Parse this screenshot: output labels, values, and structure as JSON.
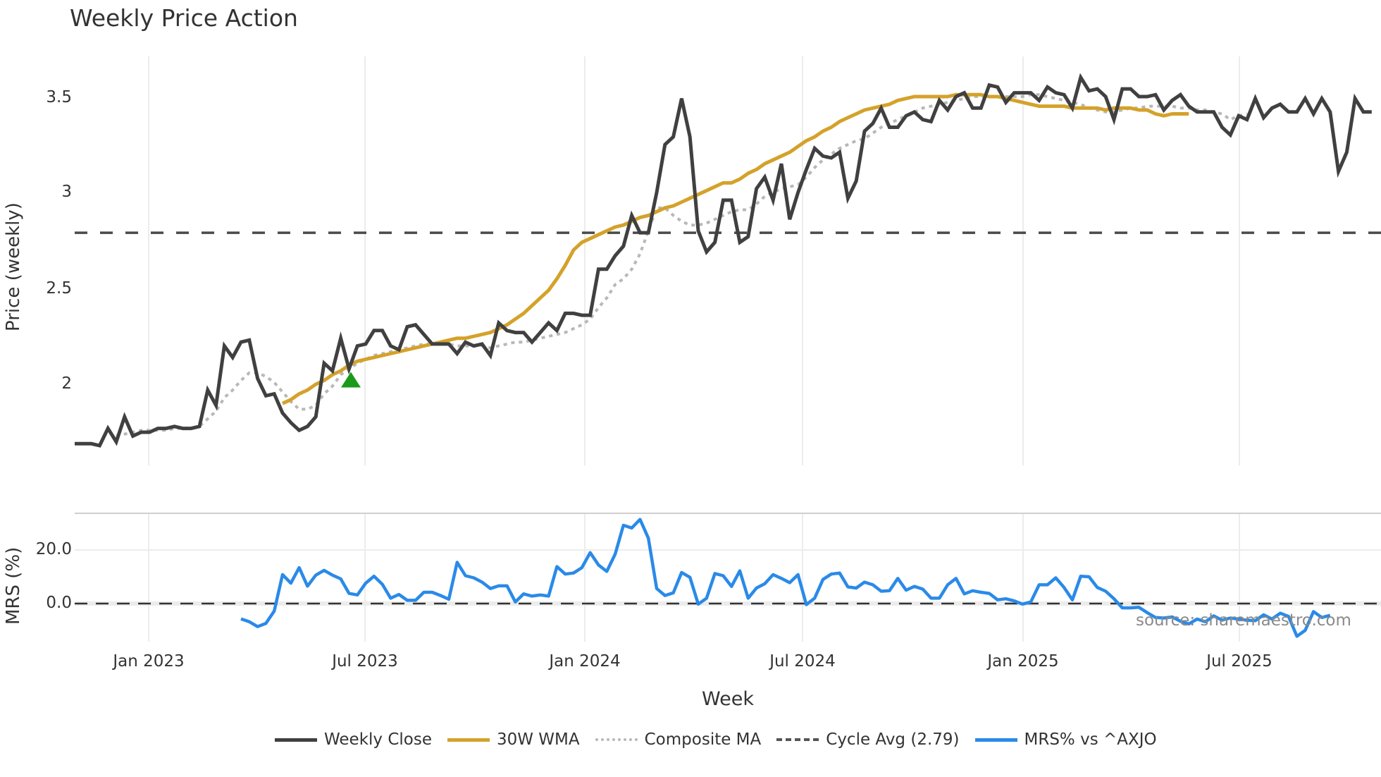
{
  "title": "Weekly Price Action",
  "price_panel": {
    "ylabel": "Price (weekly)",
    "yticks": [
      "3.5",
      "3",
      "2.5",
      "2"
    ]
  },
  "mrs_panel": {
    "ylabel": "MRS (%)",
    "yticks": [
      "20.0",
      "0.0"
    ]
  },
  "xaxis": {
    "title": "Week",
    "ticks": [
      "Jan 2023",
      "Jul 2023",
      "Jan 2024",
      "Jul 2024",
      "Jan 2025",
      "Jul 2025"
    ]
  },
  "source": "source: sharemaestro.com",
  "legend": [
    {
      "label": "Weekly Close",
      "color": "#404040",
      "style": "solid"
    },
    {
      "label": "30W WMA",
      "color": "#d4a22a",
      "style": "solid"
    },
    {
      "label": "Composite MA",
      "color": "#b8b8b8",
      "style": "dotted"
    },
    {
      "label": "Cycle Avg (2.79)",
      "color": "#555555",
      "style": "dashed"
    },
    {
      "label": "MRS% vs ^AXJO",
      "color": "#2a8ae8",
      "style": "solid"
    }
  ],
  "colors": {
    "close": "#404040",
    "wma": "#d4a22a",
    "composite": "#b8b8b8",
    "cycle": "#4a4a4a",
    "mrs": "#2a8ae8",
    "marker": "#1a9a1a",
    "grid": "#ececec"
  },
  "chart_data": [
    {
      "type": "line",
      "title": "Weekly Price Action",
      "xlabel": "Week",
      "ylabel": "Price (weekly)",
      "ylim": [
        1.68,
        3.72
      ],
      "x_tick_labels": [
        "Jan 2023",
        "Jul 2023",
        "Jan 2024",
        "Jul 2024",
        "Jan 2025",
        "Jul 2025"
      ],
      "grid": "vertical",
      "legend_position": "bottom",
      "cycle_avg": 2.79,
      "buy_marker": {
        "week_index": 26,
        "value": 2.02,
        "shape": "triangle-up",
        "color": "green"
      },
      "series": [
        {
          "name": "Weekly Close",
          "values": [
            1.69,
            1.69,
            1.69,
            1.68,
            1.77,
            1.7,
            1.83,
            1.73,
            1.75,
            1.75,
            1.77,
            1.77,
            1.78,
            1.77,
            1.77,
            1.78,
            1.97,
            1.89,
            2.2,
            2.14,
            2.22,
            2.23,
            2.03,
            1.94,
            1.95,
            1.85,
            1.8,
            1.76,
            1.78,
            1.83,
            2.11,
            2.07,
            2.24,
            2.08,
            2.2,
            2.21,
            2.28,
            2.28,
            2.2,
            2.18,
            2.3,
            2.31,
            2.26,
            2.21,
            2.21,
            2.21,
            2.16,
            2.22,
            2.2,
            2.21,
            2.15,
            2.32,
            2.28,
            2.27,
            2.27,
            2.22,
            2.27,
            2.32,
            2.28,
            2.37,
            2.37,
            2.36,
            2.36,
            2.6,
            2.6,
            2.67,
            2.72,
            2.88,
            2.79,
            2.79,
            3.0,
            3.25,
            3.29,
            3.49,
            3.29,
            2.8,
            2.69,
            2.74,
            2.96,
            2.96,
            2.74,
            2.77,
            3.02,
            3.08,
            2.96,
            3.15,
            2.86,
            3.0,
            3.12,
            3.23,
            3.19,
            3.18,
            3.21,
            2.97,
            3.06,
            3.32,
            3.36,
            3.44,
            3.34,
            3.34,
            3.4,
            3.42,
            3.38,
            3.37,
            3.48,
            3.43,
            3.5,
            3.52,
            3.44,
            3.44,
            3.56,
            3.55,
            3.47,
            3.52,
            3.52,
            3.52,
            3.48,
            3.55,
            3.52,
            3.51,
            3.44,
            3.6,
            3.53,
            3.54,
            3.5,
            3.38,
            3.54,
            3.54,
            3.5,
            3.5,
            3.51,
            3.43,
            3.48,
            3.51,
            3.45,
            3.42,
            3.42,
            3.42,
            3.34,
            3.3,
            3.4,
            3.38,
            3.49,
            3.39,
            3.44,
            3.46,
            3.42,
            3.42,
            3.49,
            3.41,
            3.49,
            3.42,
            3.11,
            3.21,
            3.49,
            3.42,
            3.42
          ]
        },
        {
          "name": "30W WMA",
          "values": [
            null,
            null,
            null,
            null,
            null,
            null,
            null,
            null,
            null,
            null,
            null,
            null,
            null,
            null,
            null,
            null,
            null,
            null,
            null,
            null,
            null,
            null,
            null,
            null,
            null,
            1.9,
            1.92,
            1.95,
            1.97,
            2.0,
            2.02,
            2.05,
            2.07,
            2.1,
            2.12,
            2.13,
            2.14,
            2.15,
            2.16,
            2.17,
            2.18,
            2.19,
            2.2,
            2.21,
            2.22,
            2.23,
            2.24,
            2.24,
            2.25,
            2.26,
            2.27,
            2.29,
            2.31,
            2.34,
            2.37,
            2.41,
            2.45,
            2.49,
            2.55,
            2.62,
            2.7,
            2.74,
            2.76,
            2.78,
            2.8,
            2.82,
            2.83,
            2.85,
            2.87,
            2.88,
            2.9,
            2.92,
            2.93,
            2.95,
            2.97,
            2.99,
            3.01,
            3.03,
            3.05,
            3.05,
            3.07,
            3.1,
            3.12,
            3.15,
            3.17,
            3.19,
            3.21,
            3.24,
            3.27,
            3.29,
            3.32,
            3.34,
            3.37,
            3.39,
            3.41,
            3.43,
            3.44,
            3.45,
            3.46,
            3.48,
            3.49,
            3.5,
            3.5,
            3.5,
            3.5,
            3.5,
            3.51,
            3.51,
            3.51,
            3.51,
            3.5,
            3.5,
            3.49,
            3.48,
            3.47,
            3.46,
            3.45,
            3.45,
            3.45,
            3.45,
            3.44,
            3.44,
            3.44,
            3.44,
            3.43,
            3.44,
            3.44,
            3.44,
            3.43,
            3.43,
            3.41,
            3.4,
            3.41,
            3.41,
            3.41
          ]
        },
        {
          "name": "Composite MA",
          "values": [
            null,
            null,
            null,
            null,
            null,
            1.73,
            1.74,
            1.75,
            1.76,
            1.76,
            1.76,
            1.76,
            1.77,
            1.77,
            1.77,
            1.78,
            1.82,
            1.86,
            1.93,
            1.97,
            2.02,
            2.06,
            2.06,
            2.04,
            2.01,
            1.96,
            1.91,
            1.87,
            1.87,
            1.89,
            1.95,
            1.99,
            2.05,
            2.08,
            2.11,
            2.13,
            2.15,
            2.16,
            2.17,
            2.18,
            2.19,
            2.2,
            2.21,
            2.21,
            2.21,
            2.21,
            2.2,
            2.2,
            2.2,
            2.2,
            2.19,
            2.2,
            2.21,
            2.22,
            2.22,
            2.23,
            2.24,
            2.25,
            2.26,
            2.27,
            2.29,
            2.31,
            2.34,
            2.4,
            2.45,
            2.52,
            2.55,
            2.6,
            2.68,
            2.8,
            2.92,
            2.92,
            2.88,
            2.85,
            2.83,
            2.83,
            2.84,
            2.86,
            2.88,
            2.9,
            2.91,
            2.91,
            2.94,
            2.98,
            3.0,
            3.02,
            3.03,
            3.04,
            3.08,
            3.13,
            3.17,
            3.2,
            3.23,
            3.25,
            3.27,
            3.28,
            3.31,
            3.34,
            3.36,
            3.38,
            3.4,
            3.42,
            3.44,
            3.45,
            3.46,
            3.47,
            3.48,
            3.49,
            3.5,
            3.5,
            3.5,
            3.5,
            3.5,
            3.5,
            3.5,
            3.51,
            3.51,
            3.5,
            3.49,
            3.48,
            3.47,
            3.46,
            3.44,
            3.43,
            3.42,
            3.42,
            3.43,
            3.44,
            3.44,
            3.45,
            3.45,
            3.45,
            3.45,
            3.44,
            3.44,
            3.43,
            3.43,
            3.42,
            3.41,
            3.38,
            3.4,
            3.41
          ]
        },
        {
          "name": "Cycle Avg (2.79)",
          "values": "constant 2.79"
        }
      ]
    },
    {
      "type": "line",
      "title": "",
      "xlabel": "Week",
      "ylabel": "MRS (%)",
      "ylim": [
        -14,
        34
      ],
      "y_tick_labels": [
        "20.0",
        "0.0"
      ],
      "zero_line": "dashed",
      "series": [
        {
          "name": "MRS% vs ^AXJO",
          "start_week_index": 20,
          "values": [
            -5.7,
            -6.8,
            -8.6,
            -7.4,
            -2.8,
            10.8,
            7.6,
            13.4,
            6.5,
            10.6,
            12.4,
            10.6,
            9.2,
            3.8,
            3.2,
            7.6,
            10.2,
            7.2,
            2.0,
            3.4,
            1.2,
            1.2,
            4.2,
            4.2,
            3.0,
            1.6,
            15.4,
            10.4,
            9.6,
            8.0,
            5.6,
            6.6,
            6.6,
            0.6,
            3.6,
            2.8,
            3.2,
            2.8,
            13.8,
            11.0,
            11.4,
            13.4,
            19.0,
            14.4,
            12.0,
            18.4,
            29.2,
            28.2,
            31.4,
            24.4,
            5.6,
            3.0,
            4.0,
            11.6,
            9.8,
            -0.2,
            2.0,
            11.2,
            10.4,
            6.4,
            12.2,
            2.0,
            5.8,
            7.4,
            10.8,
            9.4,
            7.8,
            10.8,
            -0.4,
            2.0,
            9.0,
            11.0,
            11.4,
            6.2,
            5.8,
            8.0,
            7.0,
            4.6,
            4.8,
            9.4,
            5.0,
            6.4,
            5.4,
            2.0,
            2.0,
            7.0,
            9.4,
            3.6,
            4.8,
            4.2,
            3.8,
            1.4,
            1.8,
            1.0,
            -0.2,
            0.6,
            7.0,
            7.0,
            9.6,
            6.0,
            1.4,
            10.2,
            10.0,
            6.0,
            4.6,
            1.8,
            -1.6,
            -1.6,
            -1.4,
            -3.4,
            -5.2,
            -5.4,
            -5.0,
            -6.6,
            -7.6,
            -5.8,
            -6.8,
            -4.6,
            -6.2,
            -5.4,
            -5.8,
            -6.2,
            -6.4,
            -4.2,
            -5.8,
            -3.6,
            -4.8,
            -12.2,
            -10.0,
            -3.0,
            -5.2,
            -4.4
          ]
        }
      ]
    }
  ]
}
